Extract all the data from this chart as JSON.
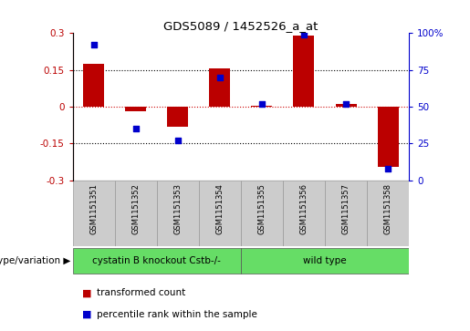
{
  "title": "GDS5089 / 1452526_a_at",
  "samples": [
    "GSM1151351",
    "GSM1151352",
    "GSM1151353",
    "GSM1151354",
    "GSM1151355",
    "GSM1151356",
    "GSM1151357",
    "GSM1151358"
  ],
  "bar_values": [
    0.175,
    -0.02,
    -0.08,
    0.155,
    0.005,
    0.29,
    0.01,
    -0.245
  ],
  "dot_values": [
    92,
    35,
    27,
    70,
    52,
    99,
    52,
    8
  ],
  "bar_color": "#bb0000",
  "dot_color": "#0000cc",
  "zero_line_color": "#cc0000",
  "dotted_line_color": "#000000",
  "ylim": [
    -0.3,
    0.3
  ],
  "y2lim": [
    0,
    100
  ],
  "yticks": [
    -0.3,
    -0.15,
    0,
    0.15,
    0.3
  ],
  "y2ticks": [
    0,
    25,
    50,
    75,
    100
  ],
  "ytick_labels": [
    "-0.3",
    "-0.15",
    "0",
    "0.15",
    "0.3"
  ],
  "y2tick_labels": [
    "0",
    "25",
    "50",
    "75",
    "100%"
  ],
  "dotted_hlines": [
    0.15,
    -0.15
  ],
  "groups": [
    {
      "label": "cystatin B knockout Cstb-/-",
      "start": 0,
      "end": 3,
      "color": "#66dd66"
    },
    {
      "label": "wild type",
      "start": 4,
      "end": 7,
      "color": "#66dd66"
    }
  ],
  "group_row_label": "genotype/variation",
  "legend_bar_label": "transformed count",
  "legend_dot_label": "percentile rank within the sample",
  "bar_width": 0.5,
  "sample_box_color": "#cccccc",
  "sample_box_edge": "#999999",
  "background_color": "#ffffff"
}
